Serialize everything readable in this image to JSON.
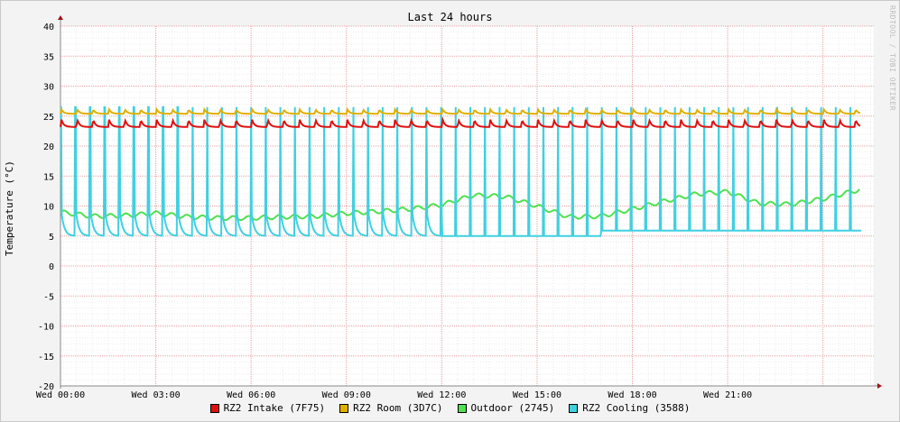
{
  "chart_data": {
    "type": "line",
    "title": "Last 24 hours",
    "watermark": "RRDTOOL / TOBI OETIKER",
    "ylabel": "Temperature (°C)",
    "xlabel": "",
    "ylim": [
      -20,
      40
    ],
    "yticks": [
      "40",
      "35",
      "30",
      "25",
      "20",
      "15",
      "10",
      "5",
      "0",
      "-5",
      "-10",
      "-15",
      "-20"
    ],
    "xlim_hours": [
      0,
      25.6
    ],
    "xticks": [
      {
        "hour": 0,
        "label": "Wed 00:00"
      },
      {
        "hour": 3,
        "label": "Wed 03:00"
      },
      {
        "hour": 6,
        "label": "Wed 06:00"
      },
      {
        "hour": 9,
        "label": "Wed 09:00"
      },
      {
        "hour": 12,
        "label": "Wed 12:00"
      },
      {
        "hour": 15,
        "label": "Wed 15:00"
      },
      {
        "hour": 18,
        "label": "Wed 18:00"
      },
      {
        "hour": 21,
        "label": "Wed 21:00"
      }
    ],
    "grid": true,
    "legend_position": "bottom",
    "series": [
      {
        "name": "RZ2 Intake (7F75)",
        "color": "#e01010",
        "pattern": "sawtooth",
        "cycle_hours": 0.5,
        "baseline": 23.2,
        "peak": 24.4
      },
      {
        "name": "RZ2 Room (3D7C)",
        "color": "#e0b000",
        "pattern": "sawtooth",
        "cycle_hours": 0.5,
        "baseline": 25.4,
        "peak": 26.1
      },
      {
        "name": "Outdoor (2745)",
        "color": "#50e050",
        "pattern": "line",
        "x": [
          0,
          1,
          2,
          3,
          4,
          5,
          6,
          7,
          8,
          9,
          10,
          11,
          12,
          13,
          14,
          15,
          16,
          17,
          18,
          19,
          20,
          21,
          22,
          23,
          24,
          25.2
        ],
        "values": [
          9.0,
          8.3,
          8.4,
          8.8,
          8.2,
          8.0,
          8.0,
          8.2,
          8.3,
          8.8,
          9.1,
          9.5,
          10.2,
          11.8,
          11.6,
          10.0,
          8.2,
          8.3,
          9.5,
          10.8,
          12.0,
          12.4,
          10.4,
          10.3,
          11.2,
          12.8
        ]
      },
      {
        "name": "RZ2 Cooling (3588)",
        "color": "#40d0e0",
        "pattern": "spikes",
        "cycle_hours": 0.46,
        "baseline": 5.0,
        "peak": 26.5,
        "baseline_later": 5.9
      }
    ]
  }
}
